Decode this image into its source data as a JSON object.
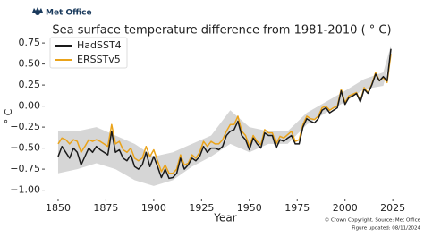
{
  "chart_data": {
    "type": "line",
    "logo": "Met Office",
    "title": "Sea surface temperature difference from 1981-2010 ( ° C)",
    "xlabel": "Year",
    "ylabel": "° C",
    "source": "© Crown Copyright. Source: Met Office",
    "updated": "Figure updated: 08/11/2024",
    "x": [
      1850,
      1852,
      1854,
      1856,
      1858,
      1860,
      1862,
      1864,
      1866,
      1868,
      1870,
      1872,
      1874,
      1876,
      1878,
      1880,
      1882,
      1884,
      1886,
      1888,
      1890,
      1892,
      1894,
      1896,
      1898,
      1900,
      1902,
      1904,
      1906,
      1908,
      1910,
      1912,
      1914,
      1916,
      1918,
      1920,
      1922,
      1924,
      1926,
      1928,
      1930,
      1932,
      1934,
      1936,
      1938,
      1940,
      1942,
      1944,
      1946,
      1948,
      1950,
      1952,
      1954,
      1956,
      1958,
      1960,
      1962,
      1964,
      1966,
      1968,
      1970,
      1972,
      1974,
      1976,
      1978,
      1980,
      1982,
      1984,
      1986,
      1988,
      1990,
      1992,
      1994,
      1996,
      1998,
      2000,
      2002,
      2004,
      2006,
      2008,
      2010,
      2012,
      2014,
      2016,
      2018,
      2020,
      2022,
      2024
    ],
    "series": [
      {
        "name": "HadSST4",
        "color": "#1a1a1a",
        "values": [
          -0.6,
          -0.48,
          -0.55,
          -0.62,
          -0.5,
          -0.55,
          -0.7,
          -0.6,
          -0.5,
          -0.55,
          -0.48,
          -0.52,
          -0.55,
          -0.58,
          -0.3,
          -0.55,
          -0.52,
          -0.62,
          -0.65,
          -0.58,
          -0.72,
          -0.75,
          -0.7,
          -0.55,
          -0.72,
          -0.6,
          -0.72,
          -0.85,
          -0.75,
          -0.86,
          -0.85,
          -0.8,
          -0.62,
          -0.75,
          -0.7,
          -0.62,
          -0.65,
          -0.6,
          -0.48,
          -0.55,
          -0.5,
          -0.5,
          -0.52,
          -0.48,
          -0.35,
          -0.3,
          -0.28,
          -0.18,
          -0.35,
          -0.4,
          -0.52,
          -0.38,
          -0.45,
          -0.5,
          -0.32,
          -0.35,
          -0.35,
          -0.5,
          -0.4,
          -0.42,
          -0.38,
          -0.35,
          -0.45,
          -0.45,
          -0.25,
          -0.15,
          -0.18,
          -0.2,
          -0.15,
          -0.05,
          -0.02,
          -0.08,
          -0.05,
          -0.02,
          0.18,
          0.02,
          0.1,
          0.12,
          0.15,
          0.05,
          0.2,
          0.15,
          0.25,
          0.38,
          0.3,
          0.35,
          0.3,
          0.68
        ]
      },
      {
        "name": "ERSSTv5",
        "color": "#eaa31a",
        "values": [
          -0.45,
          -0.38,
          -0.4,
          -0.45,
          -0.4,
          -0.42,
          -0.55,
          -0.48,
          -0.4,
          -0.42,
          -0.4,
          -0.42,
          -0.45,
          -0.48,
          -0.22,
          -0.45,
          -0.42,
          -0.52,
          -0.55,
          -0.5,
          -0.62,
          -0.65,
          -0.62,
          -0.48,
          -0.6,
          -0.52,
          -0.65,
          -0.78,
          -0.7,
          -0.8,
          -0.8,
          -0.75,
          -0.58,
          -0.7,
          -0.68,
          -0.58,
          -0.62,
          -0.55,
          -0.42,
          -0.48,
          -0.42,
          -0.45,
          -0.45,
          -0.4,
          -0.3,
          -0.22,
          -0.22,
          -0.12,
          -0.3,
          -0.35,
          -0.48,
          -0.35,
          -0.42,
          -0.46,
          -0.28,
          -0.32,
          -0.32,
          -0.45,
          -0.36,
          -0.38,
          -0.34,
          -0.3,
          -0.42,
          -0.4,
          -0.22,
          -0.12,
          -0.15,
          -0.16,
          -0.12,
          -0.02,
          0.0,
          -0.05,
          -0.02,
          0.0,
          0.2,
          0.04,
          0.12,
          0.14,
          0.16,
          0.06,
          0.22,
          0.16,
          0.26,
          0.4,
          0.3,
          0.34,
          0.28,
          0.62
        ]
      }
    ],
    "band": {
      "color": "#d6d6d6",
      "x": [
        1850,
        1860,
        1870,
        1880,
        1890,
        1900,
        1910,
        1920,
        1930,
        1940,
        1950,
        1960,
        1970,
        1980,
        1990,
        2000,
        2010,
        2020,
        2024
      ],
      "lower": [
        -0.8,
        -0.75,
        -0.68,
        -0.75,
        -0.88,
        -0.95,
        -0.88,
        -0.72,
        -0.6,
        -0.45,
        -0.55,
        -0.45,
        -0.45,
        -0.22,
        -0.08,
        0.05,
        0.2,
        0.24,
        0.58
      ],
      "upper": [
        -0.3,
        -0.3,
        -0.25,
        -0.35,
        -0.45,
        -0.6,
        -0.55,
        -0.45,
        -0.35,
        -0.05,
        -0.25,
        -0.3,
        -0.3,
        -0.08,
        0.05,
        0.18,
        0.32,
        0.4,
        0.72
      ]
    },
    "xlim": [
      1843,
      2031
    ],
    "ylim": [
      -1.1,
      0.9
    ],
    "xticks": [
      1850,
      1875,
      1900,
      1925,
      1950,
      1975,
      2000,
      2025
    ],
    "yticks": [
      {
        "value": -1,
        "label": "−1.00"
      },
      {
        "value": -0.75,
        "label": "−0.75"
      },
      {
        "value": -0.5,
        "label": "−0.50"
      },
      {
        "value": -0.25,
        "label": "−0.25"
      },
      {
        "value": 0,
        "label": "0.00"
      },
      {
        "value": 0.25,
        "label": "0.25"
      },
      {
        "value": 0.5,
        "label": "0.50"
      },
      {
        "value": 0.75,
        "label": "0.75"
      }
    ],
    "legend": "upper left",
    "grid": false
  }
}
